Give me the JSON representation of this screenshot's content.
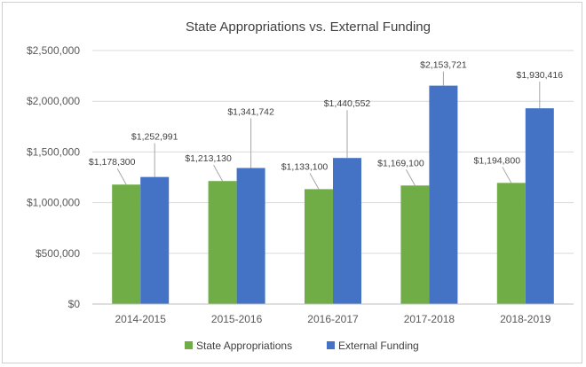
{
  "chart_data": {
    "type": "bar",
    "title": "State Appropriations vs. External Funding",
    "xlabel": "",
    "ylabel": "",
    "categories": [
      "2014-2015",
      "2015-2016",
      "2016-2017",
      "2017-2018",
      "2018-2019"
    ],
    "series": [
      {
        "name": "State Appropriations",
        "color": "#70ad47",
        "values": [
          1178300,
          1213130,
          1133100,
          1169100,
          1194800
        ],
        "labels": [
          "$1,178,300",
          "$1,213,130",
          "$1,133,100",
          "$1,169,100",
          "$1,194,800"
        ]
      },
      {
        "name": "External Funding",
        "color": "#4472c4",
        "values": [
          1252991,
          1341742,
          1440552,
          2153721,
          1930416
        ],
        "labels": [
          "$1,252,991",
          "$1,341,742",
          "$1,440,552",
          "$2,153,721",
          "$1,930,416"
        ]
      }
    ],
    "ylim": [
      0,
      2500000
    ],
    "yticks": [
      0,
      500000,
      1000000,
      1500000,
      2000000,
      2500000
    ],
    "ytick_labels": [
      "$0",
      "$500,000",
      "$1,000,000",
      "$1,500,000",
      "$2,000,000",
      "$2,500,000"
    ],
    "grid": true,
    "legend_position": "bottom"
  }
}
